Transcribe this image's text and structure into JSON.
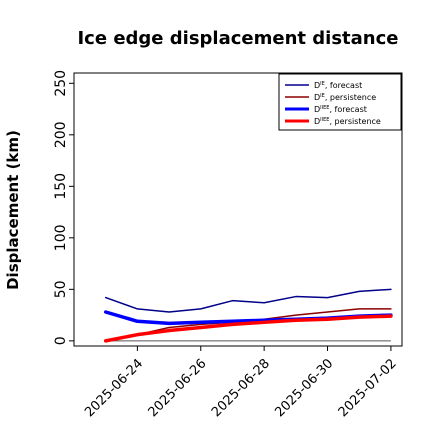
{
  "chart_data": {
    "type": "line",
    "title": "Ice edge displacement distance",
    "ylabel": "Displacement (km)",
    "xlabel": "",
    "ylim": [
      -5,
      260
    ],
    "yticks": [
      0,
      50,
      100,
      150,
      200,
      250
    ],
    "xlim": [
      "2025-06-22",
      "2025-07-02"
    ],
    "xticks": [
      {
        "label": "2025-06-24",
        "date": "2025-06-24",
        "color": "#228b22"
      },
      {
        "label": "2025-06-26",
        "date": "2025-06-26",
        "color": "#000000"
      },
      {
        "label": "2025-06-28",
        "date": "2025-06-28",
        "color": "#000000"
      },
      {
        "label": "2025-06-30",
        "date": "2025-06-30",
        "color": "#000000"
      },
      {
        "label": "2025-07-02",
        "date": "2025-07-02",
        "color": "#000000"
      }
    ],
    "legend_position": "top-right",
    "grid": false,
    "x": [
      "2025-06-23",
      "2025-06-24",
      "2025-06-25",
      "2025-06-26",
      "2025-06-27",
      "2025-06-28",
      "2025-06-29",
      "2025-06-30",
      "2025-07-01",
      "2025-07-02"
    ],
    "series": [
      {
        "name": "D^IE, forecast",
        "label_base": "D",
        "label_sup": "IE",
        "label_rest": ", forecast",
        "color": "#00008b",
        "width": 1.5,
        "values": [
          42,
          31,
          28,
          31,
          39,
          37,
          43,
          42,
          48,
          50
        ]
      },
      {
        "name": "D^IE, persistence",
        "label_base": "D",
        "label_sup": "IE",
        "label_rest": ", persistence",
        "color": "#8b0000",
        "width": 1.5,
        "values": [
          0,
          6,
          13,
          16,
          18,
          21,
          25,
          28,
          31,
          31
        ]
      },
      {
        "name": "D^IIEE, forecast",
        "label_base": "D",
        "label_sup": "IIEE",
        "label_rest": ", forecast",
        "color": "#0000ff",
        "width": 3.5,
        "values": [
          28,
          19,
          17,
          18,
          19,
          20,
          21,
          22,
          24,
          25
        ]
      },
      {
        "name": "D^IIEE, persistence",
        "label_base": "D",
        "label_sup": "IIEE",
        "label_rest": ", persistence",
        "color": "#ff0000",
        "width": 3.5,
        "values": [
          0,
          6,
          10,
          13,
          16,
          18,
          20,
          21,
          23,
          24
        ]
      }
    ],
    "reference_line": {
      "value": 0,
      "color": "#555555"
    }
  }
}
